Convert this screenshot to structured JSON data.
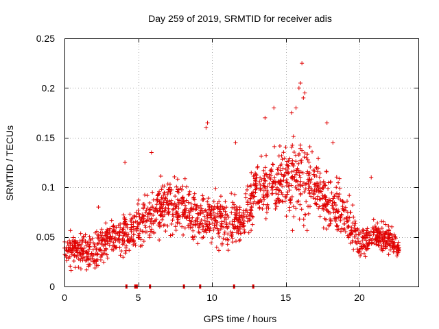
{
  "chart_data": {
    "type": "scatter",
    "title": "Day 259 of 2019, SRMTID for receiver adis",
    "xlabel": "GPS time / hours",
    "ylabel": "SRMTID / TECUs",
    "xlim": [
      0,
      24
    ],
    "ylim": [
      0,
      0.25
    ],
    "x_ticks": [
      0,
      5,
      10,
      15,
      20
    ],
    "x_tick_labels": [
      "0",
      "5",
      "10",
      "15",
      "20"
    ],
    "y_ticks": [
      0,
      0.05,
      0.1,
      0.15,
      0.2,
      0.25
    ],
    "y_tick_labels": [
      "0",
      "0.05",
      "0.1",
      "0.15",
      "0.2",
      "0.25"
    ],
    "grid": true,
    "marker": "plus",
    "color": "#e00000",
    "series": [
      {
        "name": "SRMTID",
        "trend_x": [
          0,
          1,
          2,
          3,
          4,
          5,
          6,
          7,
          8,
          9,
          10,
          11,
          12,
          13,
          14,
          15,
          16,
          17,
          18,
          19,
          20,
          21,
          22,
          22.7
        ],
        "trend_y": [
          0.035,
          0.038,
          0.035,
          0.048,
          0.05,
          0.062,
          0.075,
          0.08,
          0.078,
          0.072,
          0.07,
          0.065,
          0.066,
          0.095,
          0.105,
          0.105,
          0.11,
          0.1,
          0.085,
          0.07,
          0.045,
          0.05,
          0.048,
          0.04
        ],
        "spread": [
          0.012,
          0.014,
          0.014,
          0.016,
          0.018,
          0.018,
          0.02,
          0.022,
          0.022,
          0.022,
          0.022,
          0.02,
          0.02,
          0.022,
          0.025,
          0.03,
          0.035,
          0.028,
          0.024,
          0.02,
          0.014,
          0.012,
          0.012,
          0.012
        ],
        "x": [
          2.3,
          4.1,
          5.9,
          9.6,
          9.7,
          11.6,
          13.6,
          14.2,
          15.4,
          15.7,
          15.9,
          16.0,
          16.1,
          16.2,
          16.3,
          17.8,
          18.2,
          20.8
        ],
        "y": [
          0.08,
          0.125,
          0.135,
          0.16,
          0.165,
          0.145,
          0.17,
          0.18,
          0.175,
          0.18,
          0.2,
          0.205,
          0.225,
          0.19,
          0.195,
          0.165,
          0.145,
          0.11
        ]
      }
    ],
    "gap_markers_x": [
      4.2,
      4.8,
      4.9,
      5.8,
      8.1,
      9.2,
      11.5,
      12.8
    ]
  }
}
